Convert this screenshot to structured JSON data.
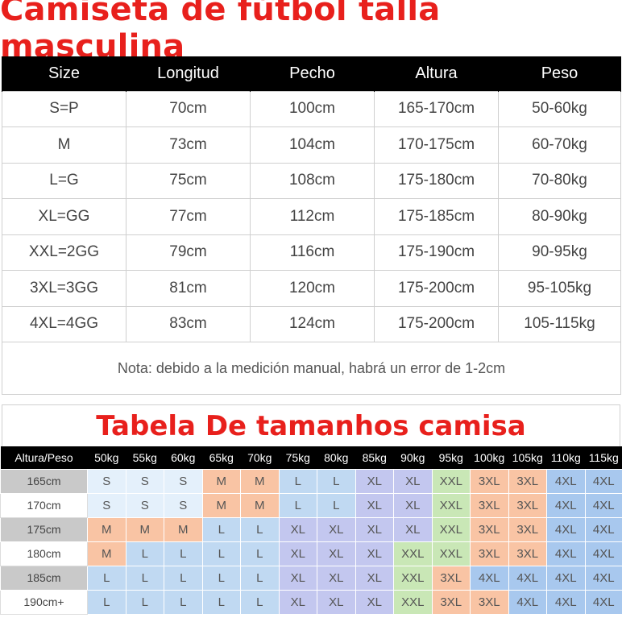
{
  "size_chart": {
    "title": "Camiseta de fútbol talla masculina",
    "headers": [
      "Size",
      "Longitud",
      "Pecho",
      "Altura",
      "Peso"
    ],
    "rows": [
      [
        "S=P",
        "70cm",
        "100cm",
        "165-170cm",
        "50-60kg"
      ],
      [
        "M",
        "73cm",
        "104cm",
        "170-175cm",
        "60-70kg"
      ],
      [
        "L=G",
        "75cm",
        "108cm",
        "175-180cm",
        "70-80kg"
      ],
      [
        "XL=GG",
        "77cm",
        "112cm",
        "175-185cm",
        "80-90kg"
      ],
      [
        "XXL=2GG",
        "79cm",
        "116cm",
        "175-190cm",
        "90-95kg"
      ],
      [
        "3XL=3GG",
        "81cm",
        "120cm",
        "175-200cm",
        "95-105kg"
      ],
      [
        "4XL=4GG",
        "83cm",
        "124cm",
        "175-200cm",
        "105-115kg"
      ]
    ],
    "note": "Nota: debido a la medición manual, habrá un error de 1-2cm"
  },
  "tamanhos": {
    "title": "Tabela De tamanhos camisa",
    "corner_header": "Altura/Peso",
    "weights": [
      "50kg",
      "55kg",
      "60kg",
      "65kg",
      "70kg",
      "75kg",
      "80kg",
      "85kg",
      "90kg",
      "95kg",
      "100kg",
      "105kg",
      "110kg",
      "115kg"
    ],
    "rows": [
      {
        "height": "165cm",
        "sizes": [
          "S",
          "S",
          "S",
          "M",
          "M",
          "L",
          "L",
          "XL",
          "XL",
          "XXL",
          "3XL",
          "3XL",
          "4XL",
          "4XL"
        ]
      },
      {
        "height": "170cm",
        "sizes": [
          "S",
          "S",
          "S",
          "M",
          "M",
          "L",
          "L",
          "XL",
          "XL",
          "XXL",
          "3XL",
          "3XL",
          "4XL",
          "4XL"
        ]
      },
      {
        "height": "175cm",
        "sizes": [
          "M",
          "M",
          "M",
          "L",
          "L",
          "XL",
          "XL",
          "XL",
          "XL",
          "XXL",
          "3XL",
          "3XL",
          "4XL",
          "4XL"
        ]
      },
      {
        "height": "180cm",
        "sizes": [
          "M",
          "L",
          "L",
          "L",
          "L",
          "XL",
          "XL",
          "XL",
          "XXL",
          "XXL",
          "3XL",
          "3XL",
          "4XL",
          "4XL"
        ]
      },
      {
        "height": "185cm",
        "sizes": [
          "L",
          "L",
          "L",
          "L",
          "L",
          "XL",
          "XL",
          "XL",
          "XXL",
          "3XL",
          "4XL",
          "4XL",
          "4XL",
          "4XL"
        ]
      },
      {
        "height": "190cm+",
        "sizes": [
          "L",
          "L",
          "L",
          "L",
          "L",
          "XL",
          "XL",
          "XL",
          "XXL",
          "3XL",
          "3XL",
          "4XL",
          "4XL",
          "4XL"
        ]
      }
    ],
    "colors": {
      "S": "#e4f0fb",
      "M": "#f9c4a4",
      "L": "#c0d9f2",
      "XL": "#c3c7ef",
      "XXL": "#c9e7b6",
      "3XL": "#f9c4a4",
      "4XL": "#a8c8ee"
    }
  }
}
